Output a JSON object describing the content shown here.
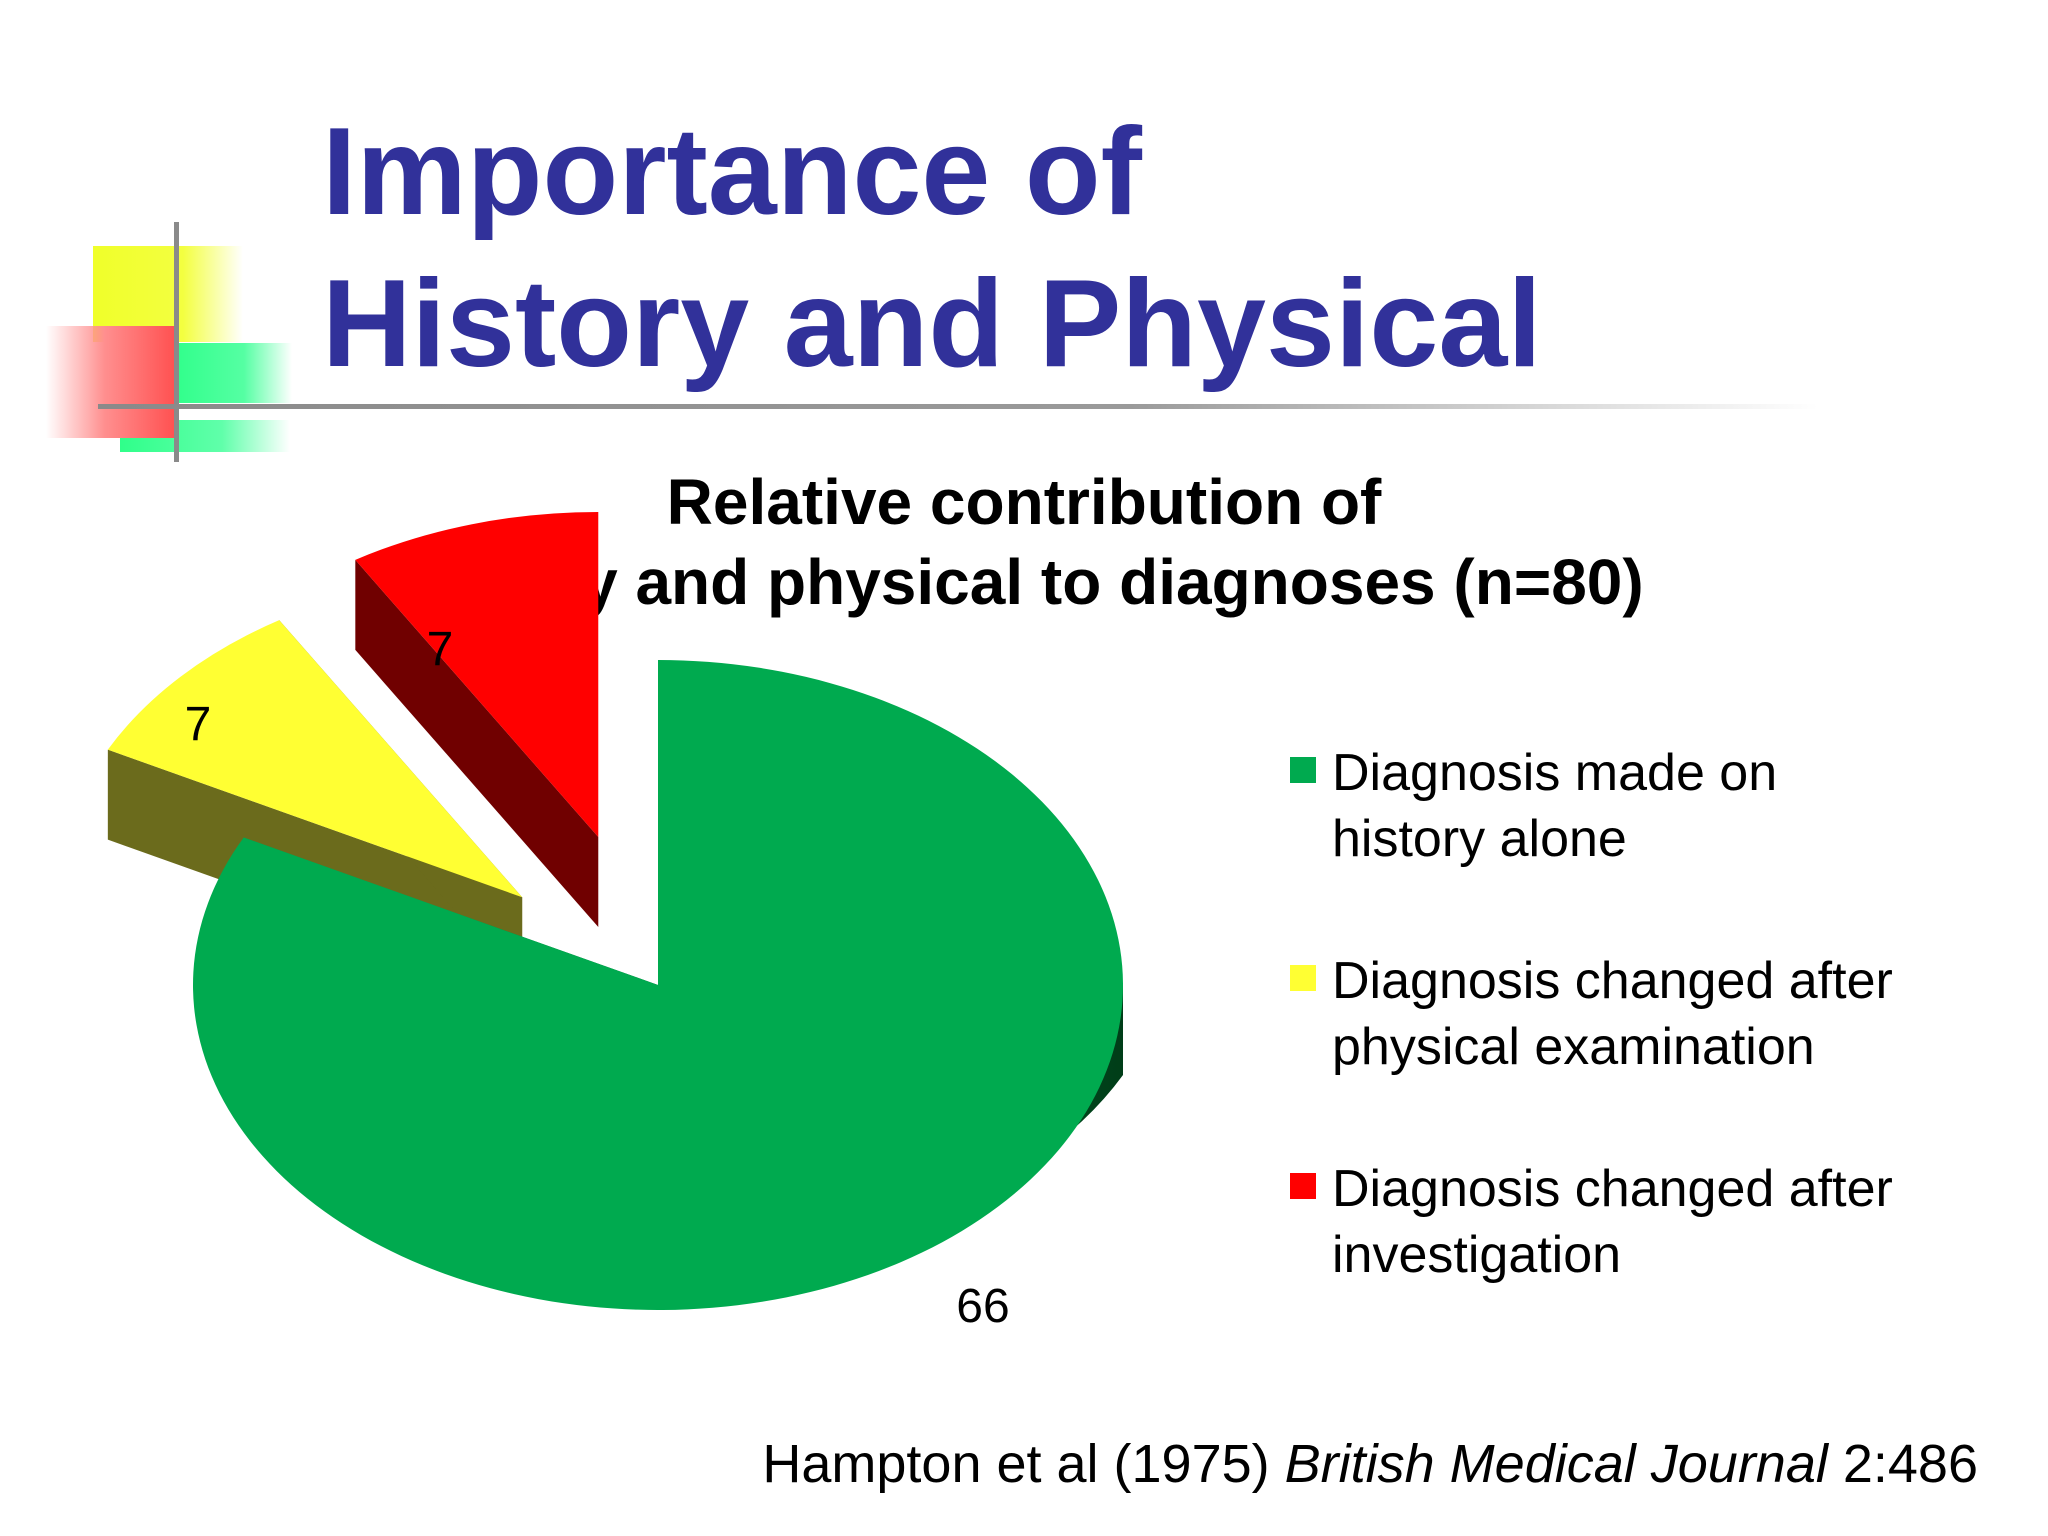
{
  "slide": {
    "title_line1": "Importance of",
    "title_line2": "History and Physical"
  },
  "chart_data": {
    "type": "pie",
    "title_line1": "Relative contribution of",
    "title_line2": "history and physical to diagnoses (n=80)",
    "slices": [
      {
        "label_line1": "Diagnosis made on",
        "label_line2": "history alone",
        "value": 66,
        "color": "#00aa4f"
      },
      {
        "label_line1": "Diagnosis changed after",
        "label_line2": "physical examination",
        "value": 7,
        "color": "#ffff33"
      },
      {
        "label_line1": "Diagnosis changed after",
        "label_line2": "investigation",
        "value": 7,
        "color": "#ff0000"
      }
    ],
    "exploded_slices": [
      1,
      2
    ],
    "three_d": true,
    "legend_position": "right"
  },
  "citation": {
    "authors": "Hampton et al (1975) ",
    "journal": "British Medical Journal",
    "ref": " 2:486"
  }
}
